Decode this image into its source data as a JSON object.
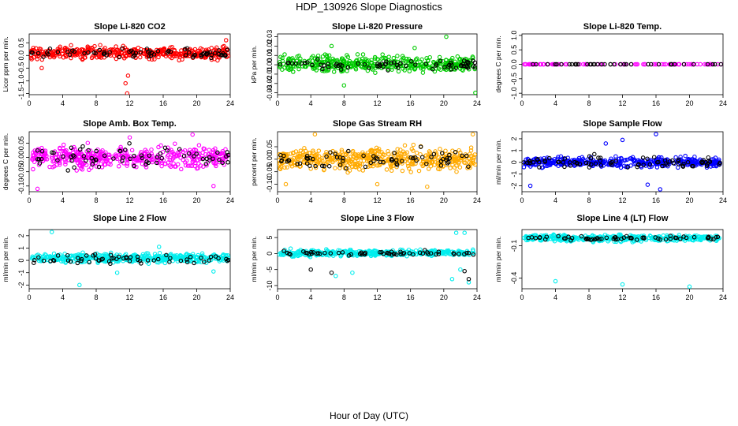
{
  "figure": {
    "title": "HDP_130926  Slope Diagnostics",
    "xlabel": "Hour of Day (UTC)"
  },
  "chart_data": [
    {
      "type": "scatter",
      "title": "Slope Li-820 CO2",
      "ylabel": "Licor ppm per min.",
      "xlim": [
        0,
        24
      ],
      "ylim": [
        -1.55,
        0.85
      ],
      "xticks": [
        0,
        4,
        8,
        12,
        16,
        20,
        24
      ],
      "yticks": [
        -1.5,
        -1.0,
        -0.5,
        0.0,
        0.5
      ],
      "ytick_labels": [
        "-1.5",
        "-1.0",
        "-0.5",
        "0.0",
        "0.5"
      ],
      "series": [
        {
          "name": "all",
          "color": "#ff0000",
          "n": 420,
          "center": 0.1,
          "spread": 0.2,
          "outliers": [
            [
              1.5,
              -0.5
            ],
            [
              11.5,
              -1.1
            ],
            [
              11.8,
              -0.8
            ],
            [
              11.7,
              -1.5
            ],
            [
              5.0,
              0.4
            ],
            [
              23.5,
              0.6
            ]
          ]
        },
        {
          "name": "selected",
          "color": "#000000",
          "n": 70,
          "center": 0.08,
          "spread": 0.15,
          "outliers": []
        }
      ]
    },
    {
      "type": "scatter",
      "title": "Slope Li-820 Pressure",
      "ylabel": "kPa per min.",
      "xlim": [
        0,
        24
      ],
      "ylim": [
        -0.032,
        0.033
      ],
      "xticks": [
        0,
        4,
        8,
        12,
        16,
        20,
        24
      ],
      "yticks": [
        -0.03,
        -0.02,
        -0.01,
        0.0,
        0.01,
        0.02,
        0.03
      ],
      "ytick_labels": [
        "-0.03",
        "-0.02",
        "-0.01",
        "0.00",
        "0.01",
        "0.02",
        "0.03"
      ],
      "series": [
        {
          "name": "all",
          "color": "#00cc00",
          "n": 420,
          "center": 0.001,
          "spread": 0.007,
          "outliers": [
            [
              6.5,
              0.02
            ],
            [
              20.3,
              0.03
            ],
            [
              23.8,
              -0.03
            ],
            [
              8.0,
              -0.022
            ],
            [
              16.5,
              0.018
            ]
          ]
        },
        {
          "name": "selected",
          "color": "#000000",
          "n": 70,
          "center": 0.0,
          "spread": 0.005,
          "outliers": []
        }
      ]
    },
    {
      "type": "scatter",
      "title": "Slope Li-820 Temp.",
      "ylabel": "degrees C per min.",
      "xlim": [
        0,
        24
      ],
      "ylim": [
        -1.05,
        1.05
      ],
      "xticks": [
        0,
        4,
        8,
        12,
        16,
        20,
        24
      ],
      "yticks": [
        -1.0,
        -0.5,
        0.0,
        0.5,
        1.0
      ],
      "ytick_labels": [
        "-1.0",
        "-0.5",
        "0.0",
        "0.5",
        "1.0"
      ],
      "series": [
        {
          "name": "all",
          "color": "#ff00ff",
          "n": 90,
          "center": 0.0,
          "spread": 0.0,
          "outliers": []
        },
        {
          "name": "selected",
          "color": "#000000",
          "n": 40,
          "center": 0.0,
          "spread": 0.0,
          "outliers": []
        }
      ]
    },
    {
      "type": "scatter",
      "title": "Slope Amb. Box Temp.",
      "ylabel": "degrees C per min.",
      "xlim": [
        0,
        24
      ],
      "ylim": [
        -0.12,
        0.09
      ],
      "xticks": [
        0,
        4,
        8,
        12,
        16,
        20,
        24
      ],
      "yticks": [
        -0.1,
        -0.05,
        0.0,
        0.05
      ],
      "ytick_labels": [
        "-0.10",
        "-0.05",
        "0.00",
        "0.05"
      ],
      "series": [
        {
          "name": "all",
          "color": "#ff00ff",
          "n": 430,
          "center": 0.0,
          "spread": 0.03,
          "outliers": [
            [
              1.0,
              -0.11
            ],
            [
              19.5,
              0.08
            ],
            [
              12.0,
              0.07
            ],
            [
              22.0,
              -0.1
            ]
          ]
        },
        {
          "name": "selected",
          "color": "#000000",
          "n": 70,
          "center": 0.0,
          "spread": 0.03,
          "outliers": []
        }
      ]
    },
    {
      "type": "scatter",
      "title": "Slope Gas Stream RH",
      "ylabel": "percent per min.",
      "xlim": [
        0,
        24
      ],
      "ylim": [
        -0.13,
        0.11
      ],
      "xticks": [
        0,
        4,
        8,
        12,
        16,
        20,
        24
      ],
      "yticks": [
        -0.1,
        -0.05,
        0.0,
        0.05
      ],
      "ytick_labels": [
        "-0.10",
        "-0.05",
        "0.00",
        "0.05"
      ],
      "series": [
        {
          "name": "all",
          "color": "#ffaa00",
          "n": 500,
          "center": 0.0,
          "spread": 0.035,
          "outliers": [
            [
              4.5,
              0.1
            ],
            [
              23.5,
              0.1
            ],
            [
              12.0,
              -0.1
            ],
            [
              18.0,
              -0.11
            ],
            [
              1.0,
              -0.1
            ]
          ]
        },
        {
          "name": "selected",
          "color": "#000000",
          "n": 70,
          "center": 0.0,
          "spread": 0.03,
          "outliers": []
        }
      ]
    },
    {
      "type": "scatter",
      "title": "Slope Sample Flow",
      "ylabel": "ml/min per min.",
      "xlim": [
        0,
        24
      ],
      "ylim": [
        -2.5,
        2.6
      ],
      "xticks": [
        0,
        4,
        8,
        12,
        16,
        20,
        24
      ],
      "yticks": [
        -2,
        -1,
        0,
        1,
        2
      ],
      "ytick_labels": [
        "-2",
        "-1",
        "0",
        "1",
        "2"
      ],
      "series": [
        {
          "name": "all",
          "color": "#0000ff",
          "n": 420,
          "center": 0.0,
          "spread": 0.35,
          "outliers": [
            [
              16.0,
              2.4
            ],
            [
              12.0,
              1.9
            ],
            [
              16.5,
              -2.3
            ],
            [
              1.0,
              -2.0
            ],
            [
              10.0,
              1.6
            ],
            [
              15.0,
              -1.9
            ]
          ]
        },
        {
          "name": "selected",
          "color": "#000000",
          "n": 80,
          "center": 0.0,
          "spread": 0.4,
          "outliers": []
        }
      ]
    },
    {
      "type": "scatter",
      "title": "Slope Line 2 Flow",
      "ylabel": "ml/min per min.",
      "xlim": [
        0,
        24
      ],
      "ylim": [
        -2.3,
        2.5
      ],
      "xticks": [
        0,
        4,
        8,
        12,
        16,
        20,
        24
      ],
      "yticks": [
        -2,
        -1,
        0,
        1,
        2
      ],
      "ytick_labels": [
        "-2",
        "-1",
        "0",
        "1",
        "2"
      ],
      "series": [
        {
          "name": "all",
          "color": "#00eeee",
          "n": 420,
          "center": 0.2,
          "spread": 0.3,
          "outliers": [
            [
              2.7,
              2.3
            ],
            [
              6.0,
              -2.0
            ],
            [
              10.5,
              -1.0
            ],
            [
              15.5,
              1.1
            ],
            [
              22.0,
              -0.9
            ]
          ]
        },
        {
          "name": "selected",
          "color": "#000000",
          "n": 60,
          "center": 0.1,
          "spread": 0.3,
          "outliers": []
        }
      ]
    },
    {
      "type": "scatter",
      "title": "Slope Line 3 Flow",
      "ylabel": "ml/min per min.",
      "xlim": [
        0,
        24
      ],
      "ylim": [
        -11,
        7.5
      ],
      "xticks": [
        0,
        4,
        8,
        12,
        16,
        20,
        24
      ],
      "yticks": [
        -10,
        -5,
        0,
        5
      ],
      "ytick_labels": [
        "-10",
        "-5",
        "0",
        "5"
      ],
      "series": [
        {
          "name": "all",
          "color": "#00eeee",
          "n": 380,
          "center": 0.2,
          "spread": 0.8,
          "outliers": [
            [
              21.5,
              6.5
            ],
            [
              22.5,
              6.5
            ],
            [
              21.0,
              -8.0
            ],
            [
              7.0,
              -7.0
            ],
            [
              9.0,
              -6.0
            ],
            [
              23.0,
              -9.0
            ],
            [
              22.0,
              -5.0
            ]
          ]
        },
        {
          "name": "selected",
          "color": "#000000",
          "n": 60,
          "center": 0.0,
          "spread": 0.6,
          "outliers": [
            [
              4.0,
              -5.0
            ],
            [
              23.0,
              -8.0
            ],
            [
              22.5,
              -5.5
            ],
            [
              6.5,
              -6.0
            ]
          ]
        }
      ]
    },
    {
      "type": "scatter",
      "title": "Slope Line 4 (LT) Flow",
      "ylabel": "ml/min per min.",
      "xlim": [
        0,
        24
      ],
      "ylim": [
        -0.5,
        0.05
      ],
      "xticks": [
        0,
        4,
        8,
        12,
        16,
        20,
        24
      ],
      "yticks": [
        -0.4,
        -0.1
      ],
      "ytick_labels": [
        "-0.4",
        "-0.1"
      ],
      "series": [
        {
          "name": "all",
          "color": "#00eeee",
          "n": 400,
          "center": -0.03,
          "spread": 0.025,
          "outliers": [
            [
              4.0,
              -0.43
            ],
            [
              12.0,
              -0.46
            ],
            [
              20.0,
              -0.48
            ]
          ]
        },
        {
          "name": "selected",
          "color": "#000000",
          "n": 60,
          "center": -0.03,
          "spread": 0.02,
          "outliers": []
        }
      ]
    }
  ]
}
